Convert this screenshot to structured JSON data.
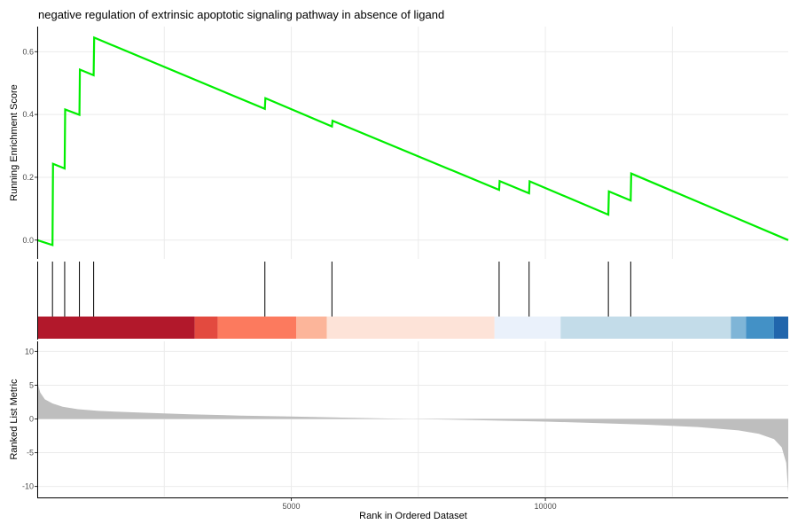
{
  "chart_data": [
    {
      "type": "line",
      "title": "negative regulation of extrinsic apoptotic signaling pathway in absence of ligand",
      "ylabel": "Running Enrichment Score",
      "xlim": [
        0,
        14780
      ],
      "ylim": [
        -0.06,
        0.68
      ],
      "yticks": [
        0.0,
        0.2,
        0.4,
        0.6
      ],
      "ytick_labels": [
        "0.0",
        "0.2",
        "0.4",
        "0.6"
      ],
      "grid": true,
      "line_color": "#00ee00",
      "series": [
        {
          "x": [
            0,
            300,
            310,
            540,
            550,
            830,
            840,
            1110,
            1120,
            4480,
            4490,
            5800,
            5810,
            9090,
            9100,
            9680,
            9690,
            11240,
            11250,
            11680,
            11690,
            14780
          ],
          "values": [
            0.0,
            -0.016,
            0.243,
            0.228,
            0.416,
            0.399,
            0.543,
            0.525,
            0.645,
            0.418,
            0.452,
            0.362,
            0.38,
            0.16,
            0.188,
            0.149,
            0.187,
            0.081,
            0.155,
            0.126,
            0.212,
            0.0
          ]
        }
      ]
    },
    {
      "type": "rug",
      "hits": [
        300,
        540,
        830,
        1110,
        4480,
        5800,
        9090,
        9680,
        11240,
        11680
      ],
      "bands": [
        {
          "start": 0,
          "end": 3100,
          "color": "#b2182b"
        },
        {
          "start": 3100,
          "end": 3550,
          "color": "#e34a3f"
        },
        {
          "start": 3550,
          "end": 5100,
          "color": "#fc7a5e"
        },
        {
          "start": 5100,
          "end": 5700,
          "color": "#fcb59a"
        },
        {
          "start": 5700,
          "end": 9000,
          "color": "#fde3d8"
        },
        {
          "start": 9000,
          "end": 10300,
          "color": "#eaf1fb"
        },
        {
          "start": 10300,
          "end": 13650,
          "color": "#c3dce9"
        },
        {
          "start": 13650,
          "end": 13950,
          "color": "#7fb5d7"
        },
        {
          "start": 13950,
          "end": 14500,
          "color": "#4391c6"
        },
        {
          "start": 14500,
          "end": 14780,
          "color": "#2166ac"
        }
      ]
    },
    {
      "type": "area",
      "xlabel": "Rank in Ordered Dataset",
      "ylabel": "Ranked List Metric",
      "xlim": [
        0,
        14780
      ],
      "ylim": [
        -11.5,
        11.5
      ],
      "xticks": [
        5000,
        10000
      ],
      "xtick_labels": [
        "5000",
        "10000"
      ],
      "yticks": [
        10,
        5,
        0,
        -5,
        -10
      ],
      "ytick_labels": [
        "10",
        "5",
        "0",
        "-5",
        "-10"
      ],
      "fill_color": "#bebebe",
      "x": [
        0,
        20,
        60,
        150,
        300,
        500,
        800,
        1200,
        2000,
        3000,
        4000,
        5000,
        6000,
        7000,
        8000,
        9000,
        10000,
        11000,
        12000,
        13000,
        13800,
        14200,
        14500,
        14650,
        14740,
        14780
      ],
      "values": [
        7.8,
        5.0,
        3.9,
        2.9,
        2.3,
        1.8,
        1.45,
        1.2,
        0.95,
        0.7,
        0.5,
        0.35,
        0.2,
        0.05,
        -0.08,
        -0.22,
        -0.4,
        -0.6,
        -0.85,
        -1.2,
        -1.7,
        -2.2,
        -3.0,
        -4.2,
        -6.5,
        -10.9
      ]
    }
  ]
}
